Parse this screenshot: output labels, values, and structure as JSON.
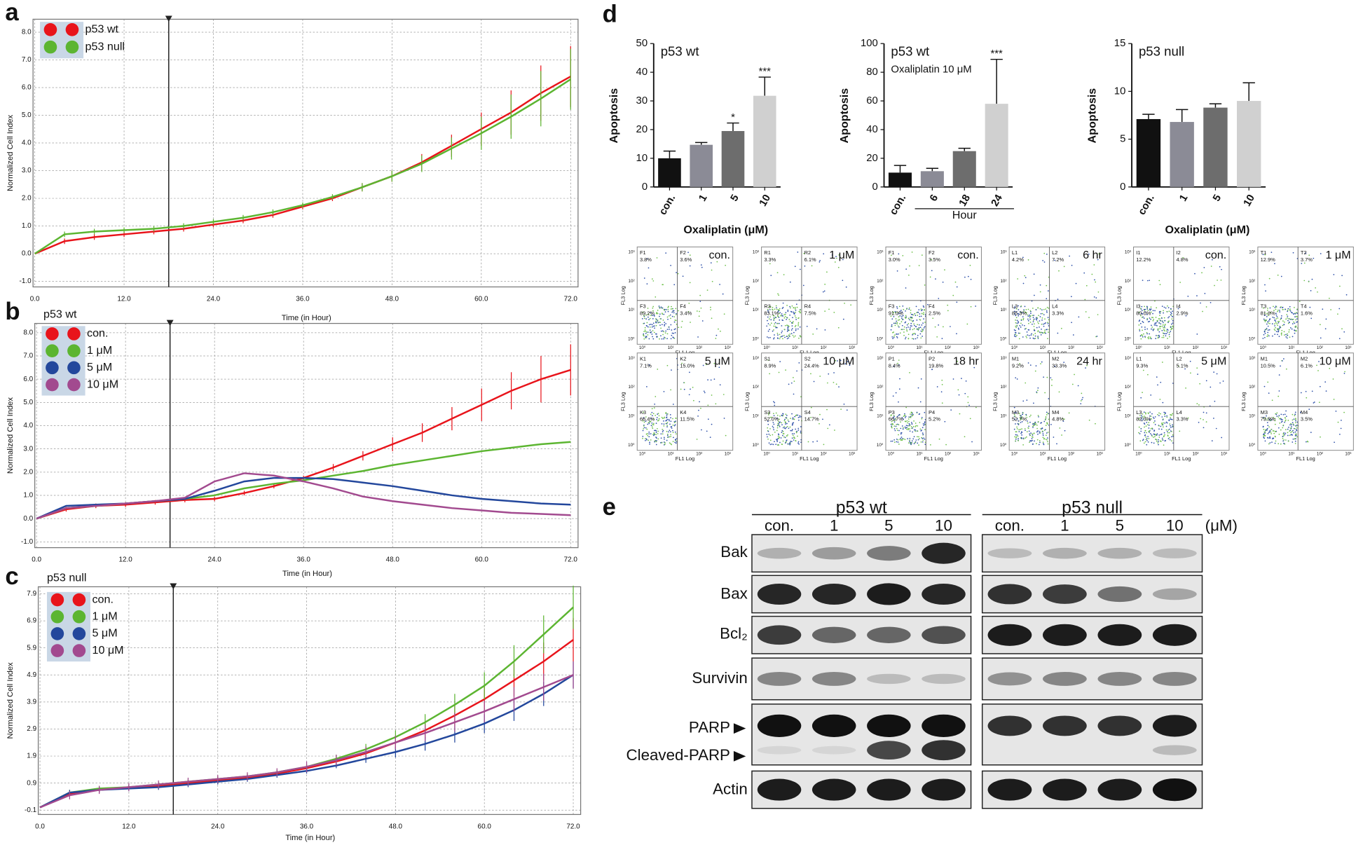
{
  "panel_labels": [
    "a",
    "b",
    "c",
    "d",
    "e"
  ],
  "chart_data": [
    {
      "type": "line",
      "y_label": "Normalized Cell Index",
      "x_label": "Time (in Hour)",
      "xlim": [
        0,
        73
      ],
      "ylim": [
        -1.2,
        8.47
      ],
      "xticks": [
        {
          "value": 0,
          "label": "0.0"
        },
        {
          "value": 12,
          "label": "12.0"
        },
        {
          "value": 24,
          "label": "24.0"
        },
        {
          "value": 36,
          "label": "36.0"
        },
        {
          "value": 48,
          "label": "48.0"
        },
        {
          "value": 60,
          "label": "60.0"
        },
        {
          "value": 72,
          "label": "72.0"
        }
      ],
      "yticks": [
        {
          "value": -1,
          "label": "-1.0"
        },
        {
          "value": 0,
          "label": "0.0"
        },
        {
          "value": 1,
          "label": "1.0"
        },
        {
          "value": 2,
          "label": "2.0"
        },
        {
          "value": 3,
          "label": "3.0"
        },
        {
          "value": 4,
          "label": "4.0"
        },
        {
          "value": 5,
          "label": "5.0"
        },
        {
          "value": 6,
          "label": "6.0"
        },
        {
          "value": 7,
          "label": "7.0"
        },
        {
          "value": 8,
          "label": "8.0"
        }
      ],
      "grid": true,
      "marker_x": 18,
      "x": [
        0,
        4,
        8,
        12,
        16,
        20,
        24,
        28,
        32,
        36,
        40,
        44,
        48,
        52,
        56,
        60,
        64,
        68,
        72
      ],
      "series": [
        {
          "name": "p53 wt",
          "color": "#e8141b",
          "values": [
            0,
            0.45,
            0.6,
            0.7,
            0.8,
            0.9,
            1.05,
            1.2,
            1.4,
            1.7,
            2.0,
            2.4,
            2.8,
            3.3,
            3.9,
            4.5,
            5.1,
            5.8,
            6.4
          ],
          "errors": [
            0,
            0.1,
            0.1,
            0.1,
            0.1,
            0.1,
            0.1,
            0.1,
            0.1,
            0.1,
            0.1,
            0.15,
            0.2,
            0.3,
            0.4,
            0.6,
            0.8,
            1.0,
            1.1
          ]
        },
        {
          "name": "p53 null",
          "color": "#5cb531",
          "values": [
            0,
            0.7,
            0.8,
            0.85,
            0.9,
            1.0,
            1.15,
            1.3,
            1.5,
            1.75,
            2.05,
            2.4,
            2.8,
            3.25,
            3.8,
            4.35,
            4.95,
            5.6,
            6.3
          ],
          "errors": [
            0,
            0.1,
            0.1,
            0.1,
            0.1,
            0.1,
            0.1,
            0.1,
            0.1,
            0.1,
            0.1,
            0.15,
            0.2,
            0.3,
            0.4,
            0.6,
            0.8,
            1.0,
            1.1
          ]
        }
      ]
    },
    {
      "type": "line",
      "title": "p53 wt",
      "y_label": "Normalized Cell Index",
      "x_label": "Time (in Hour)",
      "xlim": [
        0,
        73
      ],
      "ylim": [
        -1.25,
        8.4
      ],
      "xticks": [
        {
          "value": 0,
          "label": "0.0"
        },
        {
          "value": 12,
          "label": "12.0"
        },
        {
          "value": 24,
          "label": "24.0"
        },
        {
          "value": 36,
          "label": "36.0"
        },
        {
          "value": 48,
          "label": "48.0"
        },
        {
          "value": 60,
          "label": "60.0"
        },
        {
          "value": 72,
          "label": "72.0"
        }
      ],
      "yticks": [
        {
          "value": -1,
          "label": "-1.0"
        },
        {
          "value": 0,
          "label": "0.0"
        },
        {
          "value": 1,
          "label": "1.0"
        },
        {
          "value": 2,
          "label": "2.0"
        },
        {
          "value": 3,
          "label": "3.0"
        },
        {
          "value": 4,
          "label": "4.0"
        },
        {
          "value": 5,
          "label": "5.0"
        },
        {
          "value": 6,
          "label": "6.0"
        },
        {
          "value": 7,
          "label": "7.0"
        },
        {
          "value": 8,
          "label": "8.0"
        }
      ],
      "grid": true,
      "marker_x": 18,
      "x": [
        0,
        4,
        8,
        12,
        16,
        20,
        24,
        28,
        32,
        36,
        40,
        44,
        48,
        52,
        56,
        60,
        64,
        68,
        72
      ],
      "series": [
        {
          "name": "con.",
          "color": "#e8141b",
          "values": [
            0,
            0.4,
            0.55,
            0.6,
            0.7,
            0.8,
            0.85,
            1.1,
            1.4,
            1.75,
            2.2,
            2.7,
            3.2,
            3.7,
            4.3,
            4.9,
            5.5,
            6.0,
            6.4
          ],
          "errors": [
            0,
            0.1,
            0.1,
            0.1,
            0.1,
            0.1,
            0.1,
            0.1,
            0.1,
            0.1,
            0.15,
            0.2,
            0.3,
            0.4,
            0.5,
            0.7,
            0.8,
            1.0,
            1.1
          ]
        },
        {
          "name": "1 μM",
          "color": "#5cb531",
          "values": [
            0,
            0.45,
            0.55,
            0.65,
            0.75,
            0.85,
            1.0,
            1.3,
            1.5,
            1.65,
            1.85,
            2.05,
            2.3,
            2.5,
            2.7,
            2.9,
            3.05,
            3.2,
            3.3
          ]
        },
        {
          "name": "5 μM",
          "color": "#23479c",
          "values": [
            0,
            0.55,
            0.6,
            0.65,
            0.75,
            0.85,
            1.2,
            1.6,
            1.75,
            1.75,
            1.7,
            1.55,
            1.4,
            1.2,
            1.0,
            0.85,
            0.75,
            0.65,
            0.6
          ]
        },
        {
          "name": "10 μM",
          "color": "#a24a8f",
          "values": [
            0,
            0.45,
            0.55,
            0.65,
            0.75,
            0.9,
            1.6,
            1.95,
            1.85,
            1.6,
            1.3,
            0.95,
            0.75,
            0.6,
            0.45,
            0.35,
            0.25,
            0.2,
            0.15
          ]
        }
      ]
    },
    {
      "type": "line",
      "title": "p53 null",
      "y_label": "Normalized Cell Index",
      "x_label": "Time (in Hour)",
      "xlim": [
        0,
        73
      ],
      "ylim": [
        -0.26,
        8.16
      ],
      "xticks": [
        {
          "value": 0,
          "label": "0.0"
        },
        {
          "value": 12,
          "label": "12.0"
        },
        {
          "value": 24,
          "label": "24.0"
        },
        {
          "value": 36,
          "label": "36.0"
        },
        {
          "value": 48,
          "label": "48.0"
        },
        {
          "value": 60,
          "label": "60.0"
        },
        {
          "value": 72,
          "label": "72.0"
        }
      ],
      "yticks": [
        -0.1,
        0.9,
        1.9,
        2.9,
        3.9,
        4.9,
        5.9,
        6.9,
        7.9
      ],
      "grid": true,
      "marker_x": 18,
      "x": [
        0,
        4,
        8,
        12,
        16,
        20,
        24,
        28,
        32,
        36,
        40,
        44,
        48,
        52,
        56,
        60,
        64,
        68,
        72
      ],
      "series": [
        {
          "name": "con.",
          "color": "#e8141b",
          "values": [
            0,
            0.5,
            0.65,
            0.75,
            0.8,
            0.9,
            1.0,
            1.1,
            1.25,
            1.45,
            1.7,
            2.0,
            2.4,
            2.85,
            3.4,
            4.0,
            4.7,
            5.4,
            6.2
          ],
          "errors": [
            0,
            0.1,
            0.1,
            0.1,
            0.1,
            0.1,
            0.1,
            0.1,
            0.1,
            0.1,
            0.15,
            0.2,
            0.25,
            0.3,
            0.4,
            0.5,
            0.6,
            0.7,
            0.8
          ]
        },
        {
          "name": "1 μM",
          "color": "#5cb531",
          "values": [
            0,
            0.55,
            0.7,
            0.75,
            0.85,
            0.95,
            1.05,
            1.15,
            1.3,
            1.5,
            1.8,
            2.15,
            2.6,
            3.15,
            3.8,
            4.5,
            5.4,
            6.4,
            7.4
          ],
          "errors": [
            0,
            0.1,
            0.1,
            0.1,
            0.1,
            0.1,
            0.1,
            0.1,
            0.1,
            0.1,
            0.15,
            0.2,
            0.25,
            0.3,
            0.4,
            0.5,
            0.6,
            0.7,
            0.8
          ]
        },
        {
          "name": "5 μM",
          "color": "#23479c",
          "values": [
            0,
            0.55,
            0.65,
            0.7,
            0.75,
            0.85,
            0.95,
            1.05,
            1.2,
            1.35,
            1.55,
            1.8,
            2.05,
            2.35,
            2.7,
            3.1,
            3.6,
            4.2,
            4.9
          ],
          "errors": [
            0,
            0.1,
            0.1,
            0.1,
            0.1,
            0.1,
            0.1,
            0.1,
            0.1,
            0.1,
            0.1,
            0.15,
            0.2,
            0.25,
            0.3,
            0.35,
            0.4,
            0.45,
            0.5
          ]
        },
        {
          "name": "10 μM",
          "color": "#a24a8f",
          "values": [
            0,
            0.45,
            0.65,
            0.75,
            0.85,
            0.95,
            1.05,
            1.15,
            1.3,
            1.5,
            1.75,
            2.05,
            2.4,
            2.75,
            3.15,
            3.55,
            4.0,
            4.45,
            4.9
          ],
          "errors": [
            0,
            0.15,
            0.15,
            0.15,
            0.15,
            0.15,
            0.15,
            0.15,
            0.15,
            0.2,
            0.2,
            0.2,
            0.25,
            0.3,
            0.35,
            0.4,
            0.45,
            0.5,
            0.5
          ]
        }
      ]
    },
    {
      "type": "bar",
      "title": "p53 wt",
      "y_label": "Apoptosis",
      "x_label": "Oxaliplatin (μM)",
      "ylim": [
        0,
        50
      ],
      "yticks": [
        0,
        10,
        20,
        30,
        40,
        50
      ],
      "categories": [
        "con.",
        "1",
        "5",
        "10"
      ],
      "values": [
        10,
        14.7,
        19.5,
        31.8
      ],
      "errors": [
        2.5,
        0.8,
        2.8,
        6.5
      ],
      "colors": [
        "#111111",
        "#8b8b96",
        "#6d6d6d",
        "#d0d0d0"
      ],
      "annotations": [
        null,
        null,
        "*",
        "***"
      ]
    },
    {
      "type": "bar",
      "title": "p53 wt",
      "subtitle": "Oxaliplatin 10 μM",
      "y_label": "Apoptosis",
      "group_label": "Hour",
      "ylim": [
        0,
        100
      ],
      "yticks": [
        0,
        20,
        40,
        60,
        80,
        100
      ],
      "categories": [
        "con.",
        "6",
        "18",
        "24"
      ],
      "values": [
        10,
        11,
        25,
        58
      ],
      "errors": [
        5,
        2,
        2,
        31
      ],
      "colors": [
        "#111111",
        "#8b8b96",
        "#6d6d6d",
        "#d0d0d0"
      ],
      "annotations": [
        null,
        null,
        null,
        "***"
      ]
    },
    {
      "type": "bar",
      "title": "p53 null",
      "y_label": "Apoptosis",
      "x_label": "Oxaliplatin (μM)",
      "ylim": [
        0,
        15
      ],
      "yticks": [
        0,
        5,
        10,
        15
      ],
      "categories": [
        "con.",
        "1",
        "5",
        "10"
      ],
      "values": [
        7.1,
        6.8,
        8.3,
        9.0
      ],
      "errors": [
        0.5,
        1.3,
        0.4,
        1.9
      ],
      "colors": [
        "#111111",
        "#8b8b96",
        "#6d6d6d",
        "#d0d0d0"
      ],
      "annotations": [
        null,
        null,
        null,
        null
      ]
    }
  ],
  "flow_cytometry": {
    "x_label": "FL1 Log",
    "y_label": "FL3 Log",
    "tick_labels": [
      "10⁰",
      "10¹",
      "10²",
      "10³"
    ],
    "plots": [
      {
        "label": "con.",
        "quadrants": [
          {
            "id": "F1",
            "percent": "3.8%"
          },
          {
            "id": "F2",
            "percent": "3.6%"
          },
          {
            "id": "F3",
            "percent": "89.2%"
          },
          {
            "id": "F4",
            "percent": "3.4%"
          }
        ]
      },
      {
        "label": "1 μM",
        "quadrants": [
          {
            "id": "R1",
            "percent": "3.3%"
          },
          {
            "id": "R2",
            "percent": "6.1%"
          },
          {
            "id": "R3",
            "percent": "83.1%"
          },
          {
            "id": "R4",
            "percent": "7.5%"
          }
        ]
      },
      {
        "label": "con.",
        "quadrants": [
          {
            "id": "F1",
            "percent": "3.0%"
          },
          {
            "id": "F2",
            "percent": "3.5%"
          },
          {
            "id": "F3",
            "percent": "91.0%"
          },
          {
            "id": "F4",
            "percent": "2.5%"
          }
        ]
      },
      {
        "label": "6 hr",
        "quadrants": [
          {
            "id": "L1",
            "percent": "4.2%"
          },
          {
            "id": "L2",
            "percent": "7.2%"
          },
          {
            "id": "L3",
            "percent": "85.3%"
          },
          {
            "id": "L4",
            "percent": "3.3%"
          }
        ]
      },
      {
        "label": "con.",
        "quadrants": [
          {
            "id": "I1",
            "percent": "12.2%"
          },
          {
            "id": "I2",
            "percent": "4.8%"
          },
          {
            "id": "I3",
            "percent": "80.0%"
          },
          {
            "id": "I4",
            "percent": "2.9%"
          }
        ]
      },
      {
        "label": "1 μM",
        "quadrants": [
          {
            "id": "T1",
            "percent": "12.9%"
          },
          {
            "id": "T2",
            "percent": "3.7%"
          },
          {
            "id": "T3",
            "percent": "81.8%"
          },
          {
            "id": "T4",
            "percent": "1.6%"
          }
        ]
      },
      {
        "label": "5 μM",
        "quadrants": [
          {
            "id": "K1",
            "percent": "7.1%"
          },
          {
            "id": "K2",
            "percent": "15.0%"
          },
          {
            "id": "K3",
            "percent": "66.4%"
          },
          {
            "id": "K4",
            "percent": "11.5%"
          }
        ]
      },
      {
        "label": "10 μM",
        "quadrants": [
          {
            "id": "S1",
            "percent": "8.9%"
          },
          {
            "id": "S2",
            "percent": "24.4%"
          },
          {
            "id": "S3",
            "percent": "52.0%"
          },
          {
            "id": "S4",
            "percent": "14.7%"
          }
        ]
      },
      {
        "label": "18 hr",
        "quadrants": [
          {
            "id": "P1",
            "percent": "8.4%"
          },
          {
            "id": "P2",
            "percent": "19.8%"
          },
          {
            "id": "P3",
            "percent": "66.7%"
          },
          {
            "id": "P4",
            "percent": "5.2%"
          }
        ]
      },
      {
        "label": "24 hr",
        "quadrants": [
          {
            "id": "M1",
            "percent": "9.2%"
          },
          {
            "id": "M2",
            "percent": "33.3%"
          },
          {
            "id": "M3",
            "percent": "52.7%"
          },
          {
            "id": "M4",
            "percent": "4.8%"
          }
        ]
      },
      {
        "label": "5 μM",
        "quadrants": [
          {
            "id": "L1",
            "percent": "9.3%"
          },
          {
            "id": "L2",
            "percent": "5.1%"
          },
          {
            "id": "L3",
            "percent": "82.3%"
          },
          {
            "id": "L4",
            "percent": "3.3%"
          }
        ]
      },
      {
        "label": "10 μM",
        "quadrants": [
          {
            "id": "M1",
            "percent": "10.5%"
          },
          {
            "id": "M2",
            "percent": "6.1%"
          },
          {
            "id": "M3",
            "percent": "79.9%"
          },
          {
            "id": "M4",
            "percent": "3.5%"
          }
        ]
      }
    ]
  },
  "western_blot": {
    "groups": [
      {
        "title": "p53 wt",
        "lanes": [
          "con.",
          "1",
          "5",
          "10"
        ]
      },
      {
        "title": "p53 null",
        "lanes": [
          "con.",
          "1",
          "5",
          "10"
        ]
      }
    ],
    "unit": "(μM)",
    "rows": [
      "Bak",
      "Bax",
      "Bcl₂",
      "Survivin",
      "PARP",
      "Cleaved-PARP",
      "Actin"
    ]
  }
}
